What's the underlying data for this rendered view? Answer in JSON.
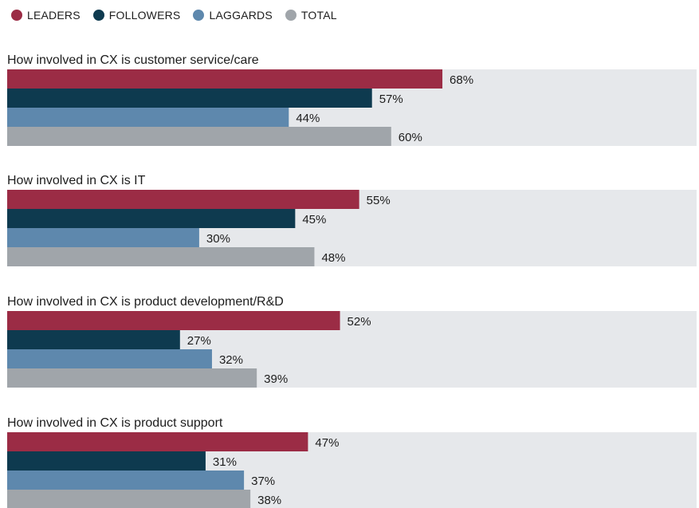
{
  "colors": {
    "leaders": "#9b2c45",
    "followers": "#0e3a4f",
    "laggards": "#5e88ad",
    "total": "#a0a5aa",
    "track": "#e6e8eb"
  },
  "legend": [
    {
      "label": "LEADERS",
      "color": "#9b2c45"
    },
    {
      "label": "FOLLOWERS",
      "color": "#0e3a4f"
    },
    {
      "label": "LAGGARDS",
      "color": "#5e88ad"
    },
    {
      "label": "TOTAL",
      "color": "#a0a5aa"
    }
  ],
  "chart_data": {
    "type": "bar",
    "orientation": "horizontal",
    "xlim": [
      0,
      100
    ],
    "value_suffix": "%",
    "categories": [
      "How involved in CX is customer service/care",
      "How involved in CX is IT",
      "How involved in CX is product development/R&D",
      "How involved in CX is product support"
    ],
    "series": [
      {
        "name": "LEADERS",
        "values": [
          68,
          55,
          52,
          47
        ]
      },
      {
        "name": "FOLLOWERS",
        "values": [
          57,
          45,
          27,
          31
        ]
      },
      {
        "name": "LAGGARDS",
        "values": [
          44,
          30,
          32,
          37
        ]
      },
      {
        "name": "TOTAL",
        "values": [
          60,
          48,
          39,
          38
        ]
      }
    ],
    "legend_position": "top-left",
    "grid": false
  }
}
